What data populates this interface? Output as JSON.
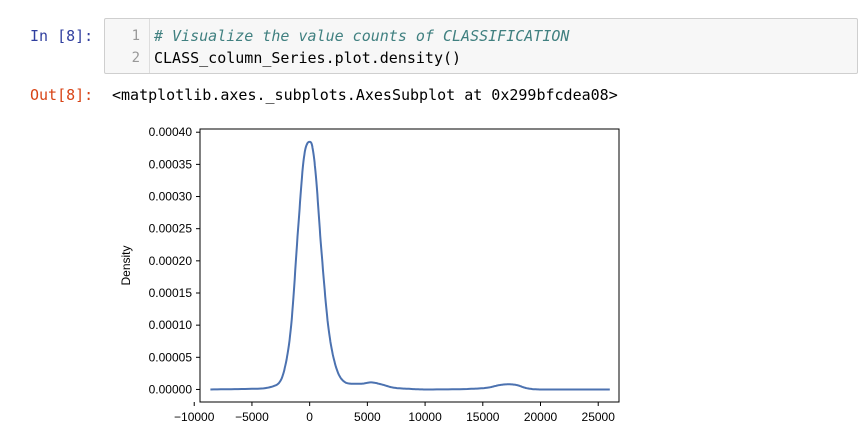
{
  "cell": {
    "in_prompt": "In [8]:",
    "out_prompt": "Out[8]:",
    "line_numbers": [
      "1",
      "2"
    ],
    "code_comment": "# Visualize the value counts of CLASSIFICATION",
    "code_line2": "CLASS_column_Series.plot.density()",
    "output_text": "<matplotlib.axes._subplots.AxesSubplot at 0x299bfcdea08>"
  },
  "chart_data": {
    "type": "line",
    "title": "",
    "xlabel": "",
    "ylabel": "Density",
    "xlim": [
      -9500,
      26800
    ],
    "ylim": [
      -1.95e-05,
      0.000405
    ],
    "xticks": [
      "−10000",
      "−5000",
      "0",
      "5000",
      "10000",
      "15000",
      "20000",
      "25000"
    ],
    "xtick_values": [
      -10000,
      -5000,
      0,
      5000,
      10000,
      15000,
      20000,
      25000
    ],
    "yticks": [
      "0.00000",
      "0.00005",
      "0.00010",
      "0.00015",
      "0.00020",
      "0.00025",
      "0.00030",
      "0.00035",
      "0.00040"
    ],
    "ytick_values": [
      0,
      5e-05,
      0.0001,
      0.00015,
      0.0002,
      0.00025,
      0.0003,
      0.00035,
      0.0004
    ],
    "line_color": "#4c72b0",
    "grid": false,
    "series": [
      {
        "x": [
          -8600,
          -5000,
          -3000,
          -2200,
          -1600,
          -1000,
          -500,
          0,
          200,
          500,
          1000,
          1600,
          2200,
          3000,
          3700,
          4500,
          5300,
          6200,
          7200,
          8600,
          10000,
          14000,
          15500,
          16500,
          17200,
          17900,
          18800,
          20000,
          26000
        ],
        "y": [
          0,
          1e-06,
          6e-06,
          3e-05,
          0.0001,
          0.00025,
          0.00036,
          0.000385,
          0.00038,
          0.00034,
          0.00022,
          0.0001,
          4e-05,
          1.2e-05,
          9e-06,
          9e-06,
          1.1e-05,
          8e-06,
          3e-06,
          1e-06,
          0,
          1e-06,
          3e-06,
          7e-06,
          8e-06,
          7e-06,
          2e-06,
          0,
          0
        ]
      }
    ]
  }
}
